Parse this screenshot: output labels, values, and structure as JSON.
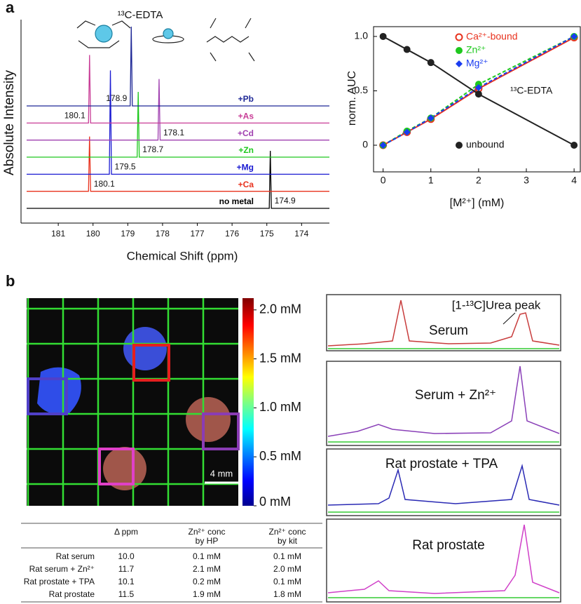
{
  "panel_labels": [
    "a",
    "b"
  ],
  "chart_data": [
    {
      "type": "stacked-spectra",
      "title": "¹³C-EDTA",
      "xlabel": "Chemical Shift (ppm)",
      "ylabel": "Absolute Intensity",
      "xlim": [
        181.91,
        173.2
      ],
      "xticks": [
        181,
        180,
        179,
        178,
        177,
        176,
        175,
        174
      ],
      "series": [
        {
          "name": "no metal",
          "color": "#000000",
          "peak": 174.9,
          "intensity": 82
        },
        {
          "name": "+Ca",
          "color": "#e8321e",
          "peak": 180.1,
          "intensity": 78
        },
        {
          "name": "+Mg",
          "color": "#1a1ad2",
          "peak": 179.5,
          "intensity": 148
        },
        {
          "name": "+Zn",
          "color": "#1ec81e",
          "peak": 178.7,
          "intensity": 93
        },
        {
          "name": "+Cd",
          "color": "#a040b0",
          "peak": 178.1,
          "intensity": 87
        },
        {
          "name": "+As",
          "color": "#c83c96",
          "peak": 180.1,
          "intensity": 97
        },
        {
          "name": "+Pb",
          "color": "#1e2896",
          "peak": 178.9,
          "intensity": 113
        }
      ]
    },
    {
      "type": "scatter",
      "xlabel": "[M²⁺] (mM)",
      "ylabel": "norm. AUC",
      "annotation": "¹³C-EDTA",
      "xlim": [
        -0.2,
        4.13
      ],
      "ylim": [
        -0.245,
        1.09
      ],
      "xticks": [
        0,
        1,
        2,
        3,
        4
      ],
      "yticks": [
        0,
        0.5,
        {
          "value": 1,
          "label": "1.0"
        }
      ],
      "x": [
        0,
        0.5,
        1,
        2,
        4
      ],
      "series": [
        {
          "name": "Ca²⁺-bound",
          "color": "#e8321e",
          "marker": "open-circle",
          "values": [
            0,
            0.12,
            0.24,
            0.52,
            0.99
          ]
        },
        {
          "name": "Zn²⁺",
          "color": "#1ec81e",
          "marker": "circle",
          "values": [
            0,
            0.13,
            0.25,
            0.56,
            1
          ]
        },
        {
          "name": "Mg²⁺",
          "color": "#1a3cf0",
          "marker": "diamond",
          "values": [
            0,
            0.12,
            0.25,
            0.53,
            1
          ]
        },
        {
          "name": "unbound",
          "color": "#222222",
          "marker": "circle",
          "values": [
            1,
            0.88,
            0.76,
            0.47,
            0
          ]
        }
      ]
    }
  ],
  "panel_b": {
    "colorbar": {
      "lim": [
        0,
        2.12
      ],
      "ticks": [
        {
          "value": 2,
          "label": "2.0 mM"
        },
        {
          "value": 1.5,
          "label": "1.5 mM"
        },
        {
          "value": 1,
          "label": "1.0 mM"
        },
        {
          "value": 0.5,
          "label": "0.5 mM"
        },
        {
          "value": 0,
          "label": "0 mM"
        }
      ]
    },
    "scale_bar": "4 mm",
    "spectra": [
      "Serum",
      "Serum + Zn²⁺",
      "Rat prostate + TPA",
      "Rat prostate"
    ],
    "spectra_annotation": "[1-¹³C]Urea peak",
    "table": {
      "columns": [
        [
          "Δ ppm"
        ],
        [
          "Zn²⁺ conc",
          "by HP"
        ],
        [
          "Zn²⁺ conc",
          "by kit"
        ]
      ],
      "rows": [
        [
          "Rat serum",
          "10.0",
          "0.1 mM",
          "0.1 mM"
        ],
        [
          "Rat serum + Zn²⁺",
          "11.7",
          "2.1 mM",
          "2.0 mM"
        ],
        [
          "Rat prostate + TPA",
          "10.1",
          "0.2 mM",
          "0.1 mM"
        ],
        [
          "Rat prostate",
          "11.5",
          "1.9 mM",
          "1.8 mM"
        ]
      ]
    }
  }
}
